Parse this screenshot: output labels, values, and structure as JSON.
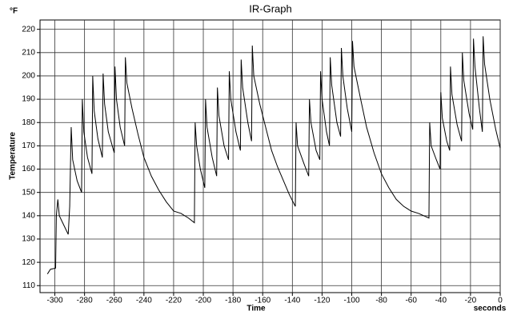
{
  "chart_data": {
    "type": "line",
    "title": "IR-Graph",
    "ylabel": "Temperature",
    "y_unit_label": "°F",
    "xlabel": "Time",
    "x_unit_label": "seconds",
    "color": "#000000",
    "grid": true,
    "xlim": [
      -310,
      0
    ],
    "xticks": [
      -300,
      -280,
      -260,
      -240,
      -220,
      -200,
      -180,
      -160,
      -140,
      -120,
      -100,
      -80,
      -60,
      -40,
      -20,
      0
    ],
    "ylim": [
      107,
      224
    ],
    "yticks": [
      110,
      120,
      130,
      140,
      150,
      160,
      170,
      180,
      190,
      200,
      210,
      220
    ],
    "x": [
      -305,
      -303,
      -299.5,
      -299,
      -298,
      -297,
      -294,
      -291,
      -290,
      -289,
      -288,
      -285,
      -282,
      -281.5,
      -280.5,
      -278,
      -275,
      -274.5,
      -273.5,
      -271,
      -268,
      -267.5,
      -266.5,
      -264,
      -260,
      -259.5,
      -258.5,
      -256,
      -253,
      -252.5,
      -251.5,
      -248,
      -244,
      -240,
      -235,
      -230,
      -225,
      -220,
      -215,
      -210,
      -206,
      -205.5,
      -204.5,
      -202,
      -199,
      -198.5,
      -197.5,
      -194,
      -191,
      -190.5,
      -189.5,
      -186,
      -183,
      -182.5,
      -181.5,
      -178,
      -175,
      -174.5,
      -173.5,
      -170,
      -167.5,
      -167,
      -166,
      -162,
      -158,
      -154,
      -150,
      -146,
      -142,
      -138,
      -137.5,
      -136.5,
      -132,
      -129,
      -128.5,
      -127.5,
      -124,
      -121.5,
      -121,
      -120,
      -117,
      -115,
      -114.5,
      -113.5,
      -110,
      -107.5,
      -107,
      -106,
      -103,
      -100,
      -99.5,
      -98.5,
      -94,
      -90,
      -85,
      -80,
      -75,
      -70,
      -65,
      -60,
      -55,
      -48,
      -47.5,
      -46.5,
      -43,
      -40.5,
      -40,
      -39,
      -36,
      -34,
      -33.5,
      -32.5,
      -29,
      -26,
      -25.5,
      -24.5,
      -21,
      -18.5,
      -18,
      -17,
      -14,
      -12,
      -11.5,
      -10.5,
      -7,
      -3,
      0
    ],
    "values": [
      115,
      117,
      117.5,
      140,
      147,
      140,
      136,
      132,
      144,
      178,
      164,
      155,
      150,
      190,
      176,
      165,
      158,
      200,
      185,
      173,
      165,
      201,
      188,
      176,
      167,
      204,
      190,
      178,
      170,
      208,
      197,
      186,
      175,
      165,
      157,
      151,
      146,
      142,
      141,
      139,
      137,
      180,
      170,
      160,
      152,
      190,
      178,
      165,
      157,
      195,
      183,
      170,
      164,
      202,
      190,
      176,
      168,
      207,
      195,
      180,
      172,
      213,
      200,
      188,
      178,
      168,
      161,
      155,
      149,
      144,
      180,
      170,
      162,
      157,
      190,
      180,
      168,
      164,
      202,
      190,
      176,
      170,
      208,
      196,
      180,
      174,
      212,
      200,
      186,
      176,
      215,
      204,
      190,
      178,
      167,
      158,
      152,
      147,
      144,
      142,
      141,
      139,
      180,
      170,
      164,
      160,
      193,
      182,
      172,
      168,
      204,
      192,
      179,
      172,
      210,
      198,
      184,
      177,
      216,
      204,
      186,
      176,
      217,
      205,
      190,
      177,
      169
    ]
  }
}
